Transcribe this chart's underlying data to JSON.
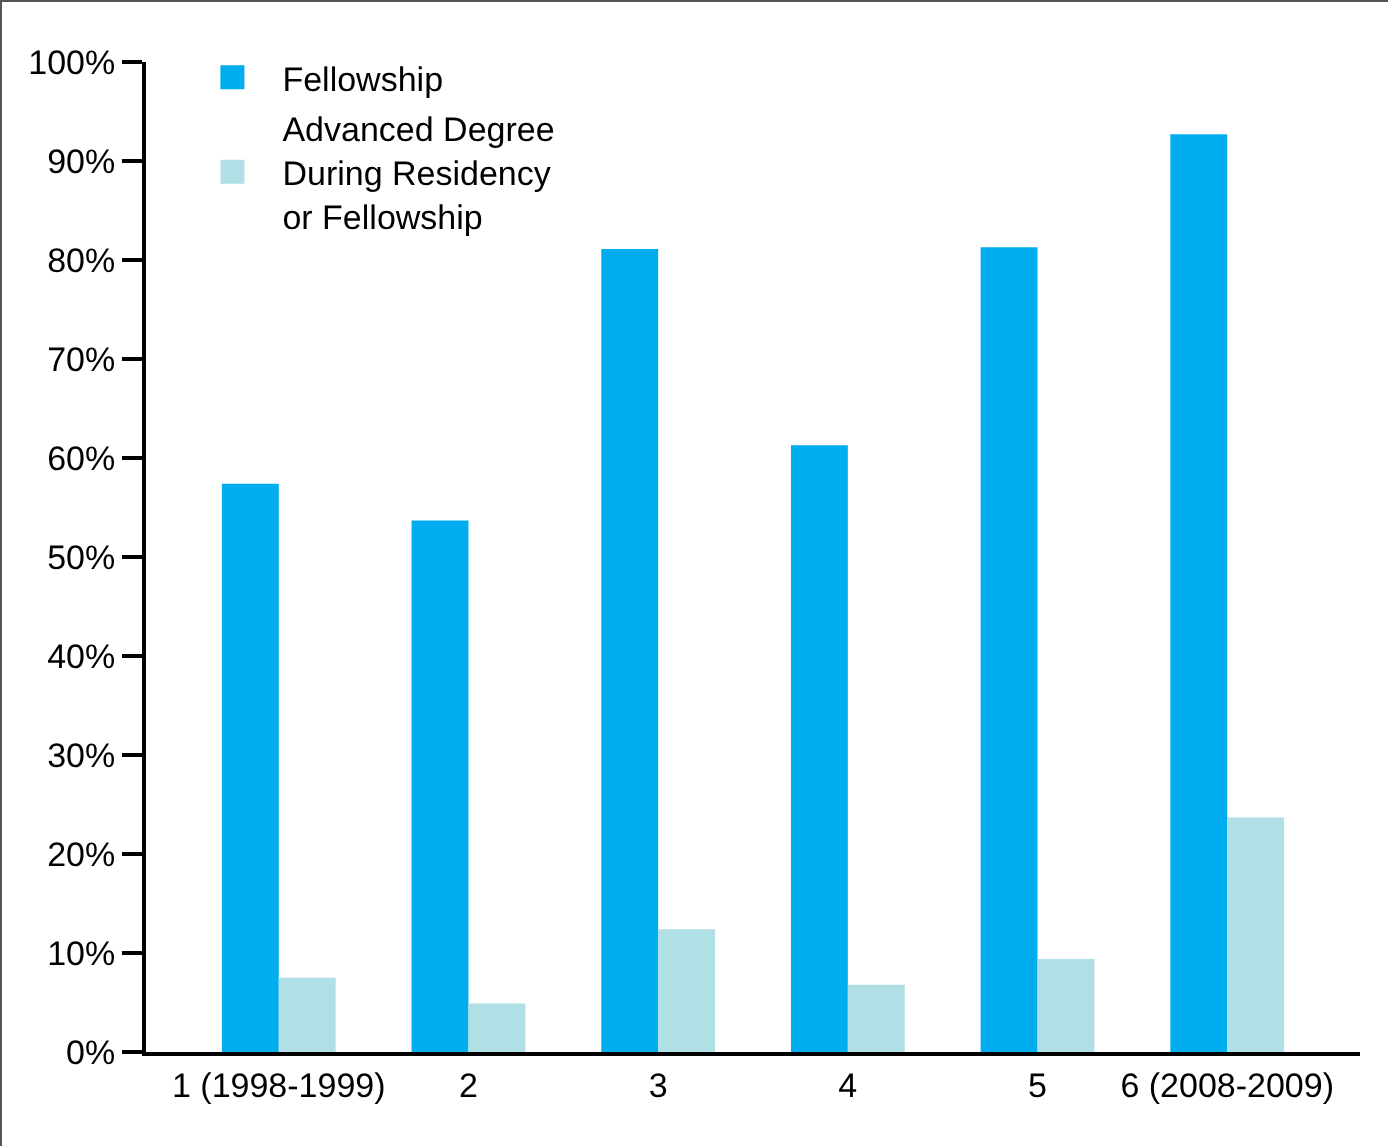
{
  "chart_data": {
    "type": "bar",
    "categories": [
      "1 (1998-1999)",
      "2",
      "3",
      "4",
      "5",
      "6 (2008-2009)"
    ],
    "series": [
      {
        "name": "Fellowship",
        "color": "#00aeef",
        "values": [
          57.4,
          53.7,
          81.1,
          61.3,
          81.3,
          92.7
        ]
      },
      {
        "name": "Advanced Degree During Residency or Fellowship",
        "color": "#b0dfe5",
        "values": [
          7.5,
          4.9,
          12.4,
          6.8,
          9.4,
          23.7
        ]
      }
    ],
    "ylim": [
      0,
      100
    ],
    "yticks": [
      {
        "value": 0,
        "label": "0%"
      },
      {
        "value": 10,
        "label": "10%"
      },
      {
        "value": 20,
        "label": "20%"
      },
      {
        "value": 30,
        "label": "30%"
      },
      {
        "value": 40,
        "label": "40%"
      },
      {
        "value": 50,
        "label": "50%"
      },
      {
        "value": 60,
        "label": "60%"
      },
      {
        "value": 70,
        "label": "70%"
      },
      {
        "value": 80,
        "label": "80%"
      },
      {
        "value": 90,
        "label": "90%"
      },
      {
        "value": 100,
        "label": "100%"
      }
    ],
    "grid": false,
    "legend": "top left"
  }
}
